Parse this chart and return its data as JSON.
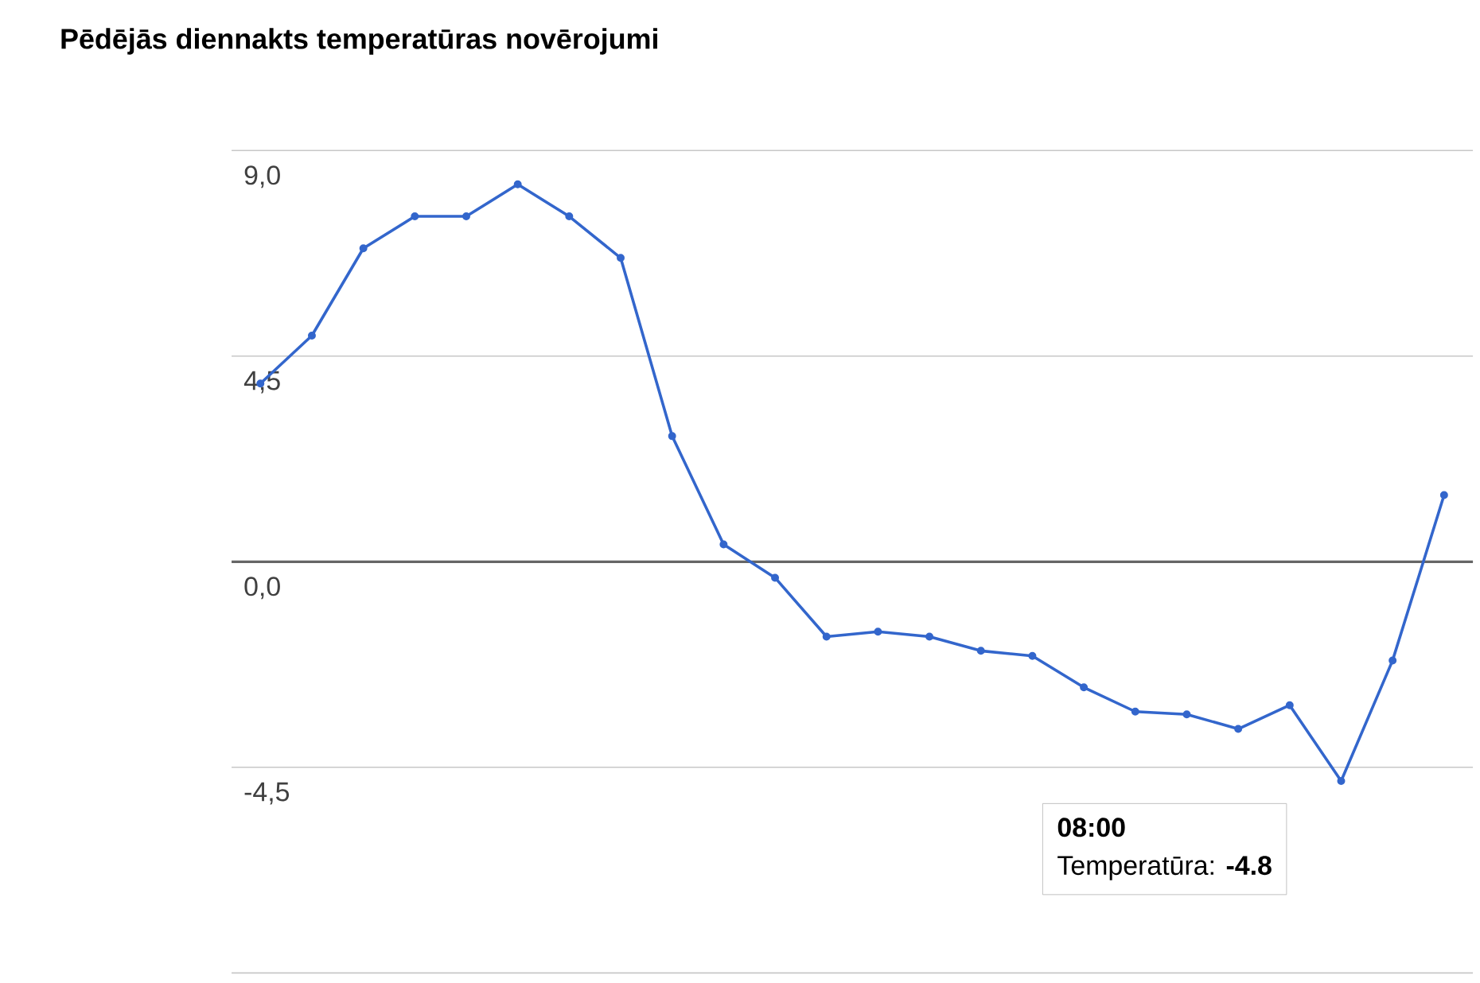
{
  "chart_data": {
    "type": "line",
    "title": "Pēdējās diennakts temperatūras novērojumi",
    "categories": [
      null,
      null,
      null,
      null,
      null,
      null,
      null,
      null,
      null,
      null,
      null,
      null,
      null,
      null,
      null,
      null,
      null,
      null,
      null,
      null,
      null,
      null,
      null,
      null
    ],
    "series": [
      {
        "color": "#3366cc",
        "values": [
          3.9,
          4.95,
          6.86,
          7.56,
          7.56,
          8.26,
          7.56,
          6.65,
          2.75,
          0.38,
          -0.35,
          -1.64,
          -1.53,
          -1.64,
          -1.95,
          -2.06,
          -2.75,
          -3.28,
          -3.34,
          -3.66,
          -3.14,
          -4.8,
          -2.16,
          1.46
        ]
      }
    ],
    "ylim": [
      -9,
      9
    ],
    "yticks": [
      {
        "value": -9,
        "label": null
      },
      {
        "value": -4.5,
        "label": "-4,5"
      },
      {
        "value": 0,
        "label": "0,0"
      },
      {
        "value": 4.5,
        "label": "4,5"
      },
      {
        "value": 9,
        "label": "9,0"
      }
    ],
    "grid": "y",
    "marker": "circle",
    "line_style": "solid",
    "ref_lines": [
      {
        "axis": "y",
        "value": 0,
        "color": "#666666"
      }
    ],
    "annotations": [
      "08:00",
      "Temperatūra: **-4.8**"
    ]
  }
}
